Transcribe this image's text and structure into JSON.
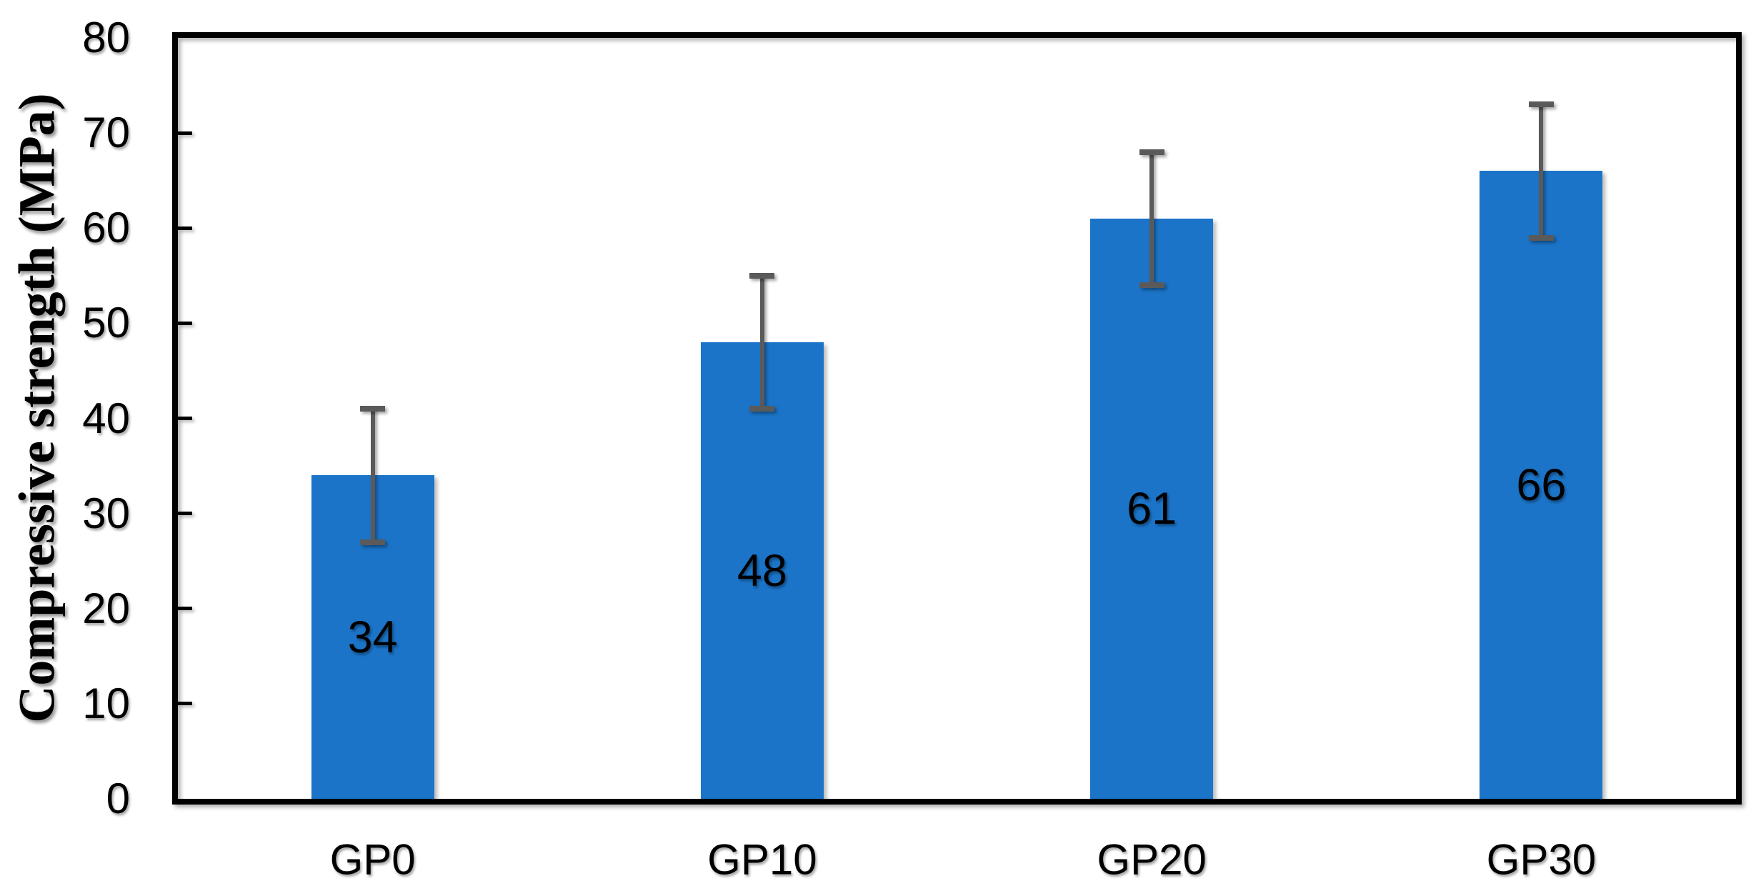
{
  "chart_data": {
    "type": "bar",
    "title": "",
    "xlabel": "",
    "ylabel": "Compressive strength (MPa)",
    "categories": [
      "GP0",
      "GP10",
      "GP20",
      "GP30"
    ],
    "series": [
      {
        "name": "Compressive strength",
        "values": [
          34,
          48,
          61,
          66
        ],
        "error_plus": [
          7,
          7,
          7,
          7
        ],
        "error_minus": [
          7,
          7,
          7,
          7
        ],
        "data_labels": [
          "34",
          "48",
          "61",
          "66"
        ]
      }
    ],
    "ylim": [
      0,
      80
    ],
    "yticks": [
      0,
      10,
      20,
      30,
      40,
      50,
      60,
      70,
      80
    ],
    "grid": false,
    "legend_position": "none",
    "data_label_position": "center",
    "colors": {
      "bar_fill": "#1B74C8",
      "error_bar": "#5A5A5A",
      "axis_line": "#000000",
      "text": "#000000",
      "background": "#FFFFFF"
    }
  }
}
